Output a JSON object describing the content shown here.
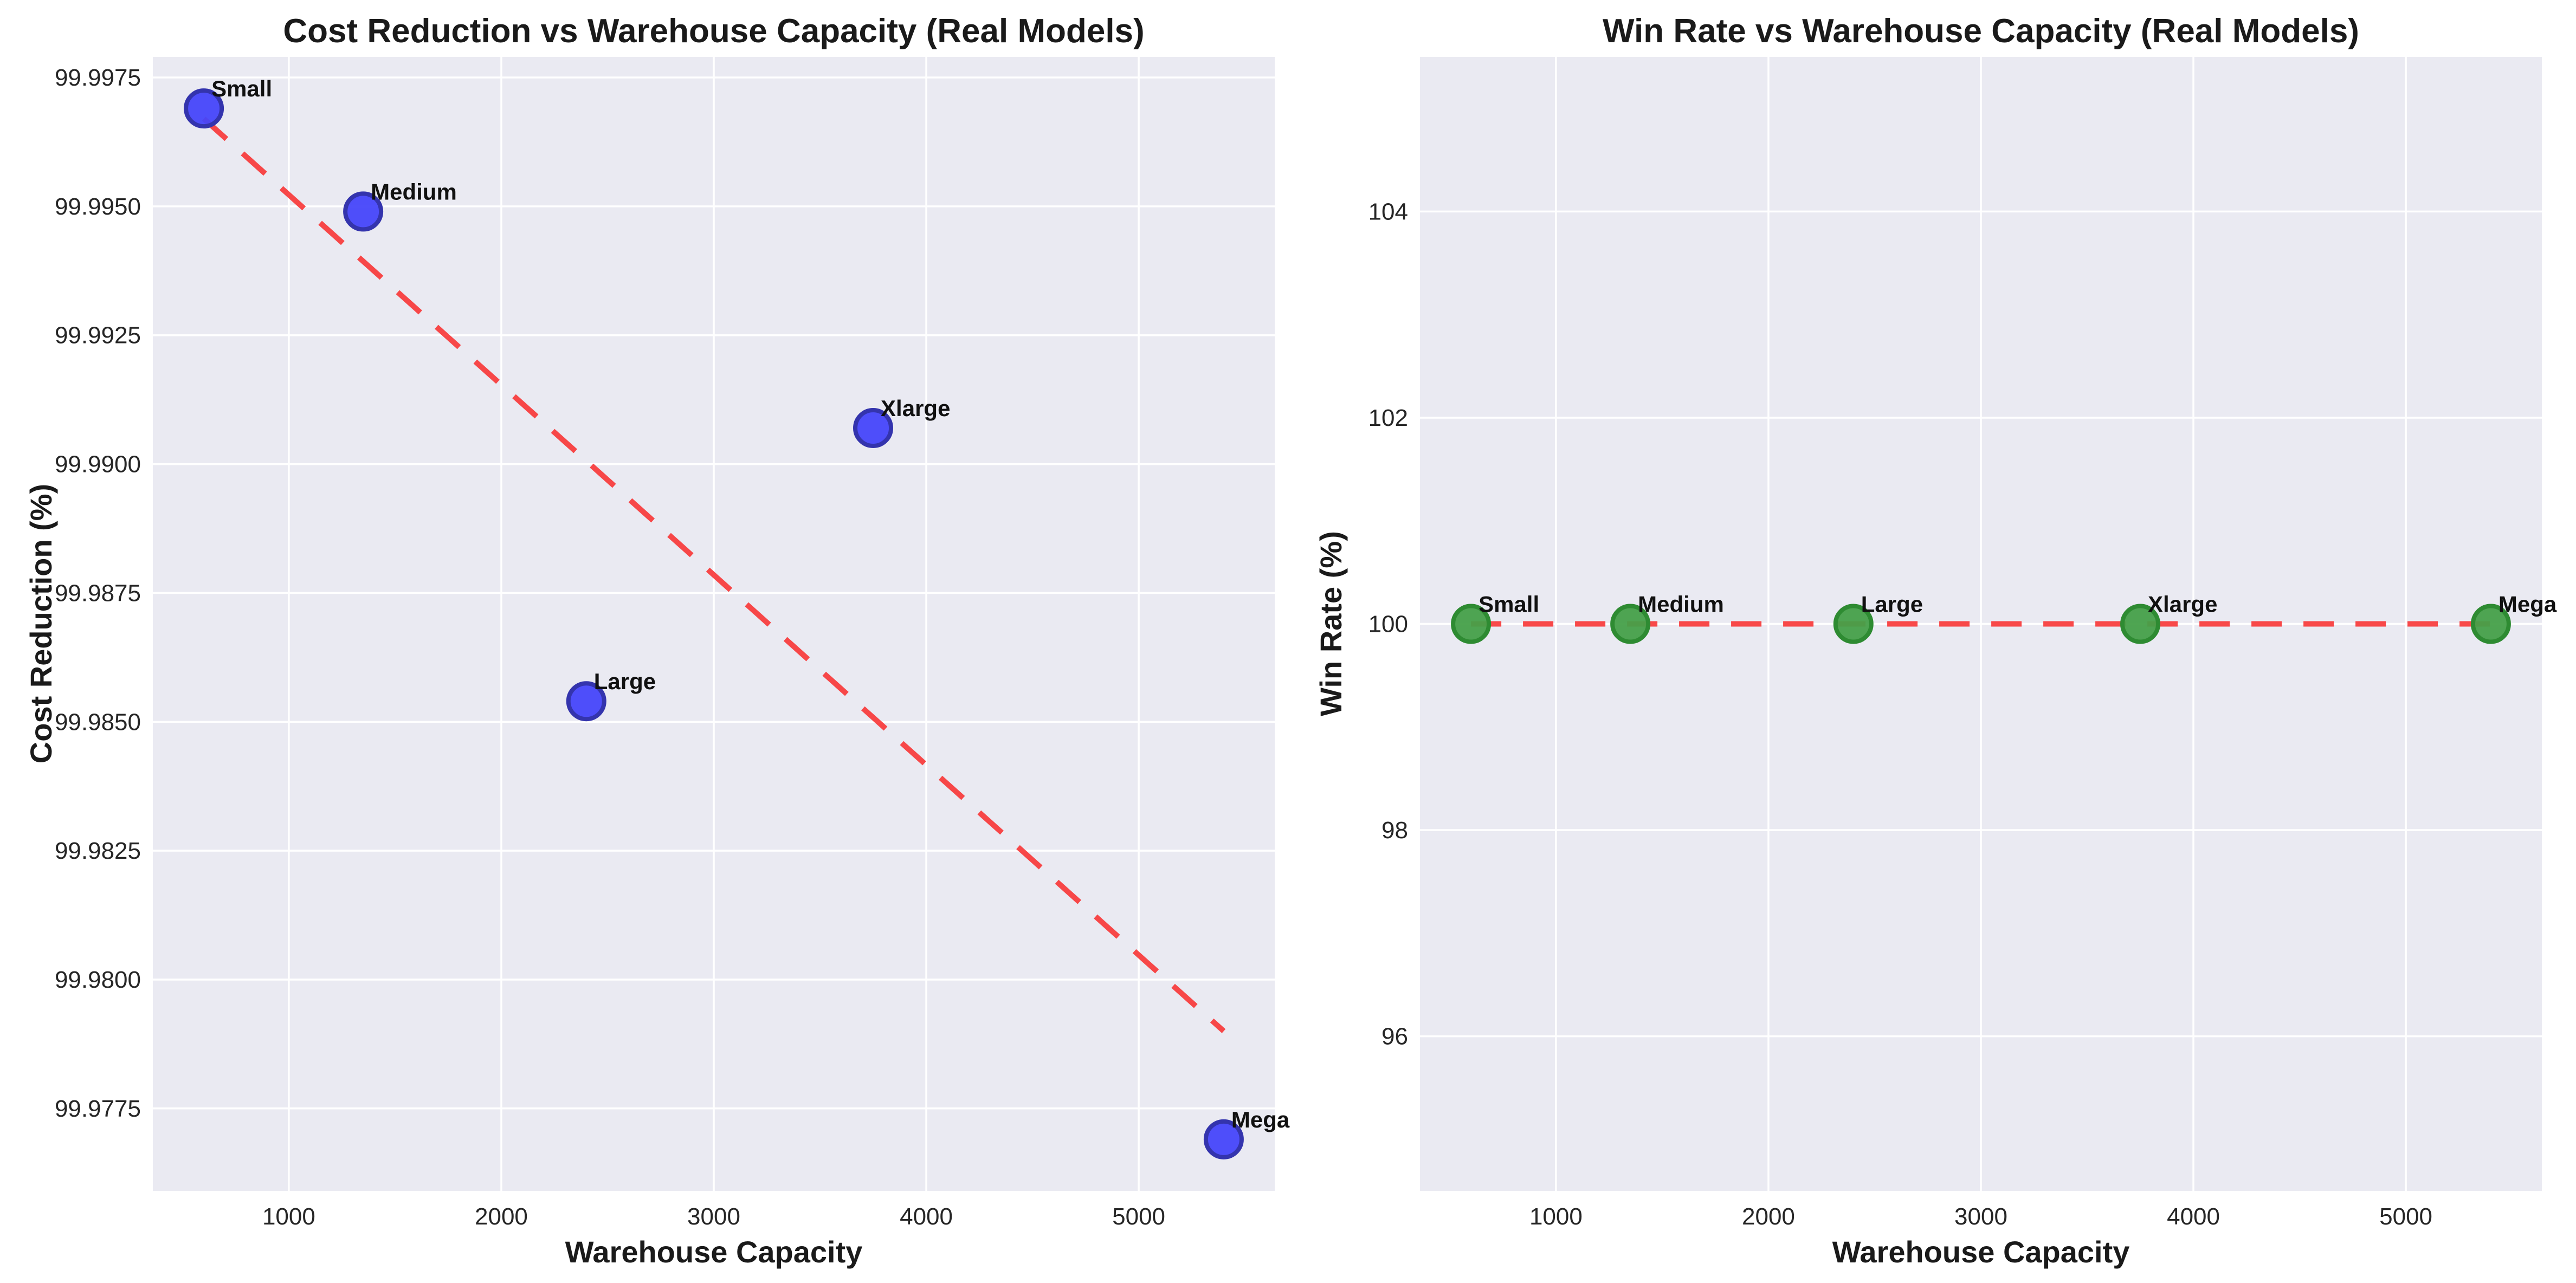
{
  "figure": {
    "background": "#ffffff",
    "grid_color": "#ffffff",
    "plot_bg": "#eaeaf2",
    "text_color": "#262626"
  },
  "chart_data": [
    {
      "type": "scatter",
      "title": "Cost Reduction vs Warehouse Capacity (Real Models)",
      "xlabel": "Warehouse Capacity",
      "ylabel": "Cost Reduction (%)",
      "x": [
        600,
        1350,
        2400,
        3750,
        5400
      ],
      "y": [
        99.9969,
        99.9949,
        99.9854,
        99.9907,
        99.9769
      ],
      "point_labels": [
        "Small",
        "Medium",
        "Large",
        "Xlarge",
        "Mega"
      ],
      "trend": {
        "x1": 600,
        "y1": 99.9967,
        "x2": 5400,
        "y2": 99.979
      },
      "xlim": [
        360,
        5640
      ],
      "ylim": [
        99.9759,
        99.9979
      ],
      "xticks": [
        1000,
        2000,
        3000,
        4000,
        5000
      ],
      "ytick_values": [
        99.9775,
        99.98,
        99.9825,
        99.985,
        99.9875,
        99.99,
        99.9925,
        99.995,
        99.9975
      ],
      "ytick_labels": [
        "99.9775",
        "99.9800",
        "99.9825",
        "99.9850",
        "99.9875",
        "99.9900",
        "99.9925",
        "99.9950",
        "99.9975"
      ],
      "plot_bg": "#eaeaf2",
      "grid_color": "#ffffff",
      "point_fill": "#4646fa",
      "point_edge": "#3434ad",
      "trend_color": "#f83030",
      "legend": "none"
    },
    {
      "type": "scatter",
      "title": "Win Rate vs Warehouse Capacity (Real Models)",
      "xlabel": "Warehouse Capacity",
      "ylabel": "Win Rate (%)",
      "x": [
        600,
        1350,
        2400,
        3750,
        5400
      ],
      "y": [
        100.0,
        100.0,
        100.0,
        100.0,
        100.0
      ],
      "point_labels": [
        "Small",
        "Medium",
        "Large",
        "Xlarge",
        "Mega"
      ],
      "trend": {
        "x1": 600,
        "y1": 100.0,
        "x2": 5400,
        "y2": 100.0
      },
      "xlim": [
        360,
        5640
      ],
      "ylim": [
        94.5,
        105.5
      ],
      "xticks": [
        1000,
        2000,
        3000,
        4000,
        5000
      ],
      "ytick_values": [
        96,
        98,
        100,
        102,
        104
      ],
      "ytick_labels": [
        "96",
        "98",
        "100",
        "102",
        "104"
      ],
      "plot_bg": "#eaeaf2",
      "grid_color": "#ffffff",
      "point_fill": "#46a049",
      "point_edge": "#2e8b32",
      "trend_color": "#f83030",
      "legend": "none"
    }
  ]
}
